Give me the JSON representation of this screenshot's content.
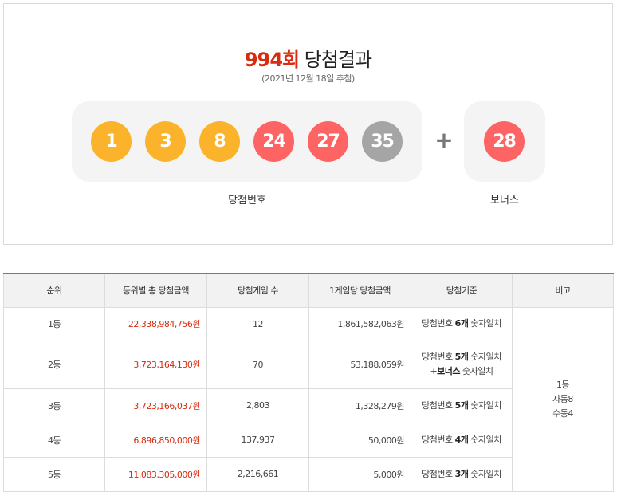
{
  "result": {
    "round": "994회",
    "title_suffix": "당첨결과",
    "draw_date": "(2021년 12월 18일 추첨)",
    "numbers": [
      "1",
      "3",
      "8",
      "24",
      "27",
      "35"
    ],
    "bonus": "28",
    "plus": "+",
    "main_label": "당첨번호",
    "bonus_label": "보너스",
    "colors": {
      "yellow": "#fbb32c",
      "red": "#ff6464",
      "gray": "#a5a5a5",
      "accent": "#d82b10"
    }
  },
  "table": {
    "headers": [
      "순위",
      "등위별 총 당첨금액",
      "당첨게임 수",
      "1게임당 당첨금액",
      "당첨기준",
      "비고"
    ],
    "rows": [
      {
        "rank": "1등",
        "total": "22,338,984,756원",
        "games": "12",
        "per_game": "1,861,582,063원",
        "crit_pre": "당첨번호 ",
        "crit_bold": "6개",
        "crit_post": " 숫자일치"
      },
      {
        "rank": "2등",
        "total": "3,723,164,130원",
        "games": "70",
        "per_game": "53,188,059원",
        "crit_pre": "당첨번호 ",
        "crit_bold": "5개",
        "crit_post": " 숫자일치",
        "crit2_pre": "+",
        "crit2_bold": "보너스",
        "crit2_post": " 숫자일치"
      },
      {
        "rank": "3등",
        "total": "3,723,166,037원",
        "games": "2,803",
        "per_game": "1,328,279원",
        "crit_pre": "당첨번호 ",
        "crit_bold": "5개",
        "crit_post": " 숫자일치"
      },
      {
        "rank": "4등",
        "total": "6,896,850,000원",
        "games": "137,937",
        "per_game": "50,000원",
        "crit_pre": "당첨번호 ",
        "crit_bold": "4개",
        "crit_post": " 숫자일치"
      },
      {
        "rank": "5등",
        "total": "11,083,305,000원",
        "games": "2,216,661",
        "per_game": "5,000원",
        "crit_pre": "당첨번호 ",
        "crit_bold": "3개",
        "crit_post": " 숫자일치"
      }
    ],
    "note": [
      "1등",
      "자동8",
      "수동4"
    ]
  }
}
